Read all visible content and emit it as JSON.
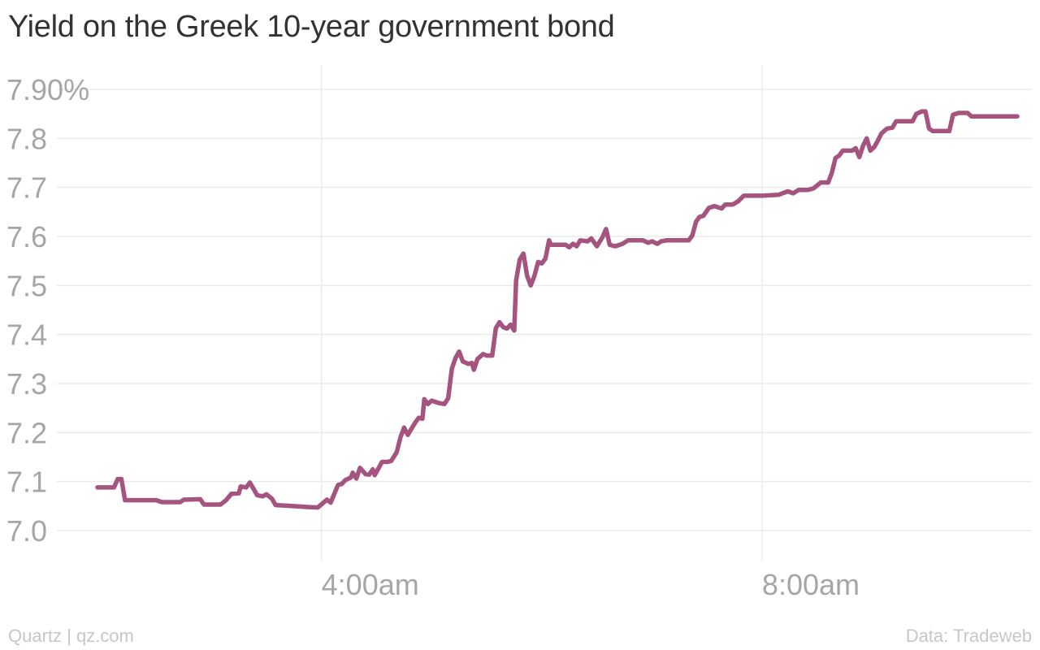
{
  "chart_data": {
    "type": "line",
    "title": "Yield on the Greek 10-year government bond",
    "xlabel": "",
    "ylabel": "",
    "ylim": [
      7.0,
      7.9
    ],
    "yticks": [
      {
        "value": 7.9,
        "label": "7.90%"
      },
      {
        "value": 7.8,
        "label": "7.8"
      },
      {
        "value": 7.7,
        "label": "7.7"
      },
      {
        "value": 7.6,
        "label": "7.6"
      },
      {
        "value": 7.5,
        "label": "7.5"
      },
      {
        "value": 7.4,
        "label": "7.4"
      },
      {
        "value": 7.3,
        "label": "7.3"
      },
      {
        "value": 7.2,
        "label": "7.2"
      },
      {
        "value": 7.1,
        "label": "7.1"
      },
      {
        "value": 7.0,
        "label": "7.0"
      }
    ],
    "xlim": [
      "01:58",
      "10:19"
    ],
    "xticks": [
      {
        "value": "04:00",
        "label": "4:00am"
      },
      {
        "value": "08:00",
        "label": "8:00am"
      }
    ],
    "grid": true,
    "series": [
      {
        "color": "#a5547f",
        "points": [
          [
            "01:58",
            7.088
          ],
          [
            "02:07",
            7.088
          ],
          [
            "02:09",
            7.105
          ],
          [
            "02:11",
            7.105
          ],
          [
            "02:13",
            7.062
          ],
          [
            "02:30",
            7.062
          ],
          [
            "02:33",
            7.058
          ],
          [
            "02:43",
            7.058
          ],
          [
            "02:45",
            7.063
          ],
          [
            "02:54",
            7.064
          ],
          [
            "02:56",
            7.053
          ],
          [
            "03:05",
            7.053
          ],
          [
            "03:08",
            7.062
          ],
          [
            "03:11",
            7.075
          ],
          [
            "03:15",
            7.076
          ],
          [
            "03:16",
            7.09
          ],
          [
            "03:19",
            7.088
          ],
          [
            "03:21",
            7.098
          ],
          [
            "03:23",
            7.085
          ],
          [
            "03:25",
            7.072
          ],
          [
            "03:28",
            7.07
          ],
          [
            "03:30",
            7.074
          ],
          [
            "03:33",
            7.065
          ],
          [
            "03:35",
            7.052
          ],
          [
            "03:44",
            7.05
          ],
          [
            "03:52",
            7.048
          ],
          [
            "03:58",
            7.047
          ],
          [
            "04:03",
            7.063
          ],
          [
            "04:05",
            7.057
          ],
          [
            "04:09",
            7.093
          ],
          [
            "04:11",
            7.095
          ],
          [
            "04:13",
            7.103
          ],
          [
            "04:16",
            7.108
          ],
          [
            "04:17",
            7.118
          ],
          [
            "04:19",
            7.106
          ],
          [
            "04:21",
            7.128
          ],
          [
            "04:24",
            7.115
          ],
          [
            "04:26",
            7.114
          ],
          [
            "04:28",
            7.125
          ],
          [
            "04:29",
            7.113
          ],
          [
            "04:33",
            7.14
          ],
          [
            "04:36",
            7.14
          ],
          [
            "04:38",
            7.142
          ],
          [
            "04:41",
            7.16
          ],
          [
            "04:43",
            7.19
          ],
          [
            "04:45",
            7.21
          ],
          [
            "04:47",
            7.195
          ],
          [
            "04:51",
            7.22
          ],
          [
            "04:53",
            7.23
          ],
          [
            "04:55",
            7.228
          ],
          [
            "04:56",
            7.268
          ],
          [
            "04:58",
            7.258
          ],
          [
            "05:00",
            7.265
          ],
          [
            "05:04",
            7.26
          ],
          [
            "05:07",
            7.258
          ],
          [
            "05:09",
            7.27
          ],
          [
            "05:11",
            7.33
          ],
          [
            "05:13",
            7.352
          ],
          [
            "05:15",
            7.365
          ],
          [
            "05:17",
            7.345
          ],
          [
            "05:20",
            7.34
          ],
          [
            "05:22",
            7.342
          ],
          [
            "05:23",
            7.328
          ],
          [
            "05:25",
            7.35
          ],
          [
            "05:28",
            7.36
          ],
          [
            "05:30",
            7.357
          ],
          [
            "05:33",
            7.357
          ],
          [
            "05:35",
            7.413
          ],
          [
            "05:37",
            7.425
          ],
          [
            "05:39",
            7.415
          ],
          [
            "05:41",
            7.412
          ],
          [
            "05:43",
            7.42
          ],
          [
            "05:45",
            7.408
          ],
          [
            "05:46",
            7.51
          ],
          [
            "05:48",
            7.553
          ],
          [
            "05:50",
            7.565
          ],
          [
            "05:52",
            7.52
          ],
          [
            "05:54",
            7.5
          ],
          [
            "05:56",
            7.52
          ],
          [
            "05:58",
            7.548
          ],
          [
            "06:00",
            7.545
          ],
          [
            "06:02",
            7.555
          ],
          [
            "06:04",
            7.592
          ],
          [
            "06:05",
            7.583
          ],
          [
            "06:13",
            7.583
          ],
          [
            "06:15",
            7.578
          ],
          [
            "06:17",
            7.585
          ],
          [
            "06:19",
            7.58
          ],
          [
            "06:21",
            7.592
          ],
          [
            "06:25",
            7.59
          ],
          [
            "06:27",
            7.596
          ],
          [
            "06:30",
            7.58
          ],
          [
            "06:33",
            7.598
          ],
          [
            "06:35",
            7.615
          ],
          [
            "06:37",
            7.583
          ],
          [
            "06:40",
            7.58
          ],
          [
            "06:44",
            7.585
          ],
          [
            "06:47",
            7.592
          ],
          [
            "06:55",
            7.592
          ],
          [
            "06:58",
            7.587
          ],
          [
            "07:00",
            7.59
          ],
          [
            "07:03",
            7.585
          ],
          [
            "07:05",
            7.59
          ],
          [
            "07:08",
            7.592
          ],
          [
            "07:20",
            7.592
          ],
          [
            "07:22",
            7.602
          ],
          [
            "07:24",
            7.63
          ],
          [
            "07:26",
            7.64
          ],
          [
            "07:28",
            7.642
          ],
          [
            "07:31",
            7.658
          ],
          [
            "07:34",
            7.662
          ],
          [
            "07:38",
            7.657
          ],
          [
            "07:40",
            7.665
          ],
          [
            "07:44",
            7.665
          ],
          [
            "07:47",
            7.672
          ],
          [
            "07:50",
            7.683
          ],
          [
            "08:00",
            7.683
          ],
          [
            "08:09",
            7.685
          ],
          [
            "08:14",
            7.692
          ],
          [
            "08:17",
            7.688
          ],
          [
            "08:20",
            7.695
          ],
          [
            "08:25",
            7.695
          ],
          [
            "08:28",
            7.698
          ],
          [
            "08:32",
            7.71
          ],
          [
            "08:36",
            7.71
          ],
          [
            "08:38",
            7.73
          ],
          [
            "08:40",
            7.76
          ],
          [
            "08:42",
            7.765
          ],
          [
            "08:44",
            7.775
          ],
          [
            "08:49",
            7.775
          ],
          [
            "08:51",
            7.78
          ],
          [
            "08:53",
            7.762
          ],
          [
            "08:55",
            7.785
          ],
          [
            "08:57",
            7.8
          ],
          [
            "08:59",
            7.775
          ],
          [
            "09:01",
            7.782
          ],
          [
            "09:03",
            7.795
          ],
          [
            "09:05",
            7.81
          ],
          [
            "09:08",
            7.82
          ],
          [
            "09:11",
            7.822
          ],
          [
            "09:13",
            7.835
          ],
          [
            "09:22",
            7.835
          ],
          [
            "09:24",
            7.85
          ],
          [
            "09:27",
            7.855
          ],
          [
            "09:29",
            7.855
          ],
          [
            "09:31",
            7.82
          ],
          [
            "09:33",
            7.815
          ],
          [
            "09:42",
            7.815
          ],
          [
            "09:44",
            7.848
          ],
          [
            "09:47",
            7.852
          ],
          [
            "09:52",
            7.852
          ],
          [
            "09:54",
            7.845
          ],
          [
            "10:19",
            7.845
          ]
        ]
      }
    ]
  },
  "footer": {
    "source_left": "Quartz | qz.com",
    "source_right": "Data: Tradeweb"
  }
}
